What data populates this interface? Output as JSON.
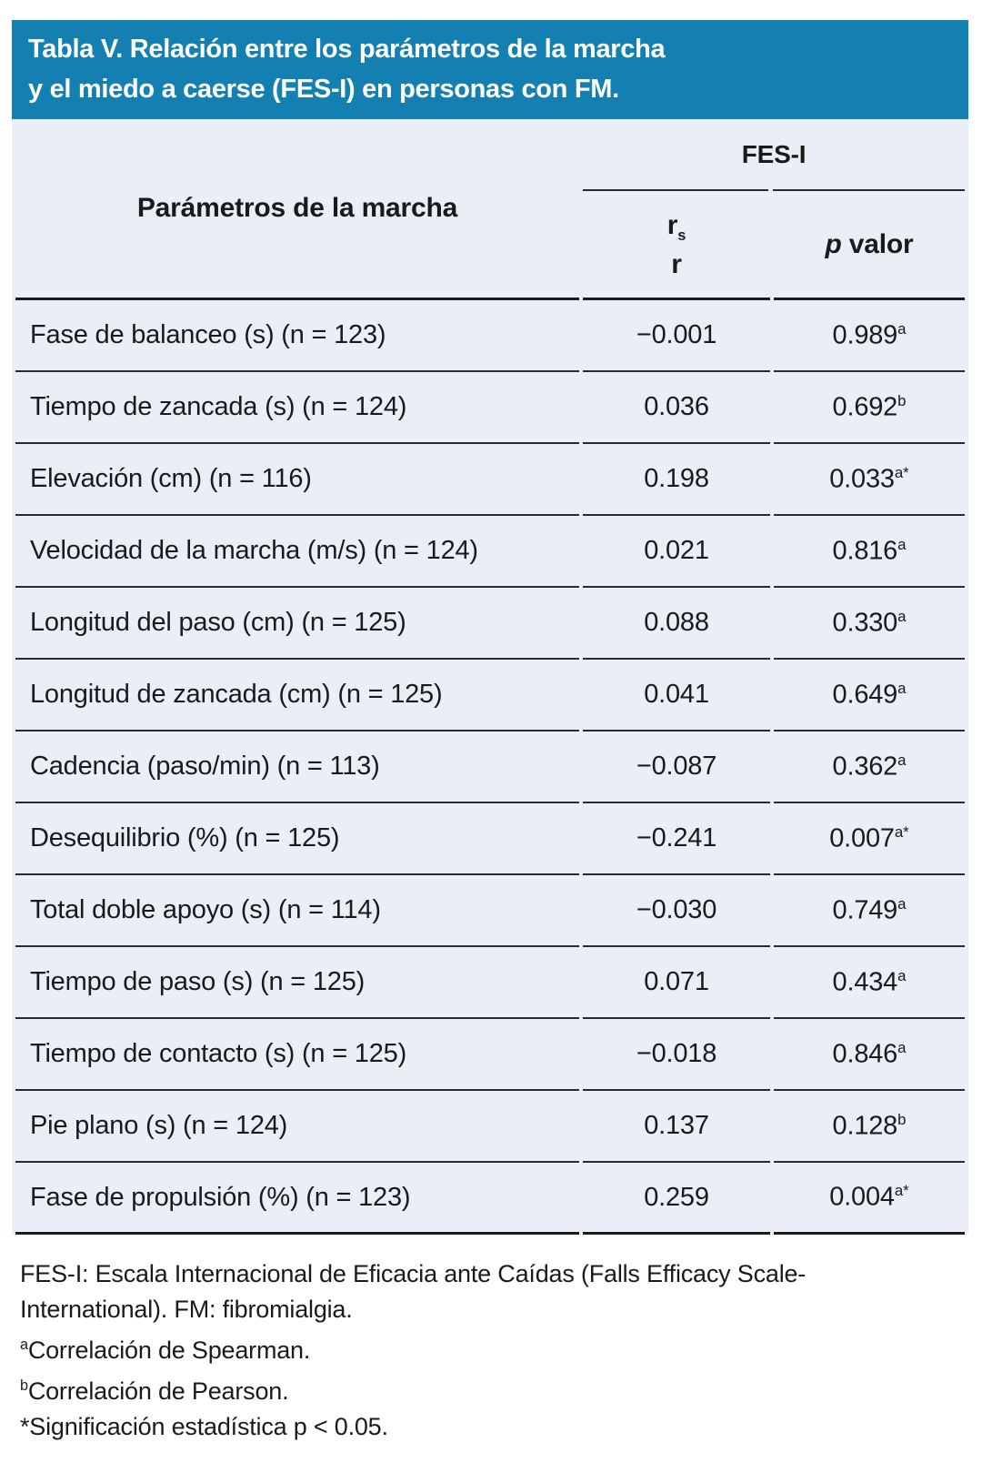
{
  "banner": {
    "title_line1": "Tabla V. Relación entre los parámetros de la marcha",
    "title_line2": "y el miedo a caerse (FES-I) en personas con FM."
  },
  "table": {
    "param_header": "Parámetros de la marcha",
    "group_header": "FES-I",
    "r_col": {
      "base": "r",
      "sub": "s",
      "line2": "r"
    },
    "p_col": {
      "italic": "p",
      "rest": " valor"
    },
    "rows": [
      {
        "label": "Fase de balanceo (s) (n = 123)",
        "r": "−0.001",
        "p": "0.989",
        "sup": "a"
      },
      {
        "label": "Tiempo de zancada (s) (n = 124)",
        "r": "0.036",
        "p": "0.692",
        "sup": "b"
      },
      {
        "label": "Elevación (cm) (n = 116)",
        "r": "0.198",
        "p": "0.033",
        "sup": "a*"
      },
      {
        "label": "Velocidad de la marcha (m/s) (n = 124)",
        "r": "0.021",
        "p": "0.816",
        "sup": "a"
      },
      {
        "label": "Longitud del paso (cm) (n = 125)",
        "r": "0.088",
        "p": "0.330",
        "sup": "a"
      },
      {
        "label": "Longitud de zancada (cm) (n = 125)",
        "r": "0.041",
        "p": "0.649",
        "sup": "a"
      },
      {
        "label": "Cadencia (paso/min) (n = 113)",
        "r": "−0.087",
        "p": "0.362",
        "sup": "a"
      },
      {
        "label": "Desequilibrio (%) (n = 125)",
        "r": "−0.241",
        "p": "0.007",
        "sup": "a*"
      },
      {
        "label": "Total doble apoyo (s) (n = 114)",
        "r": "−0.030",
        "p": "0.749",
        "sup": "a"
      },
      {
        "label": "Tiempo de paso (s) (n = 125)",
        "r": "0.071",
        "p": "0.434",
        "sup": "a"
      },
      {
        "label": "Tiempo de contacto (s) (n = 125)",
        "r": "−0.018",
        "p": "0.846",
        "sup": "a"
      },
      {
        "label": "Pie plano (s) (n = 124)",
        "r": "0.137",
        "p": "0.128",
        "sup": "b"
      },
      {
        "label": "Fase de propulsión (%) (n = 123)",
        "r": "0.259",
        "p": "0.004",
        "sup": "a*"
      }
    ]
  },
  "footnotes": {
    "line1": "FES-I: Escala Internacional de Eficacia ante Caídas (Falls Efficacy Scale-",
    "line2": "International). FM: fibromialgia.",
    "note_a_sup": "a",
    "note_a_text": "Correlación de Spearman.",
    "note_b_sup": "b",
    "note_b_text": "Correlación de Pearson.",
    "note_star": "*Significación estadística p < 0.05."
  },
  "colors": {
    "banner_bg": "#1480B1",
    "banner_text": "#FFFFFF",
    "table_bg": "#EAEFF7",
    "rule": "#2A2A2A",
    "heavy_rule": "#1C1C1C",
    "text": "#1A1A1A"
  }
}
